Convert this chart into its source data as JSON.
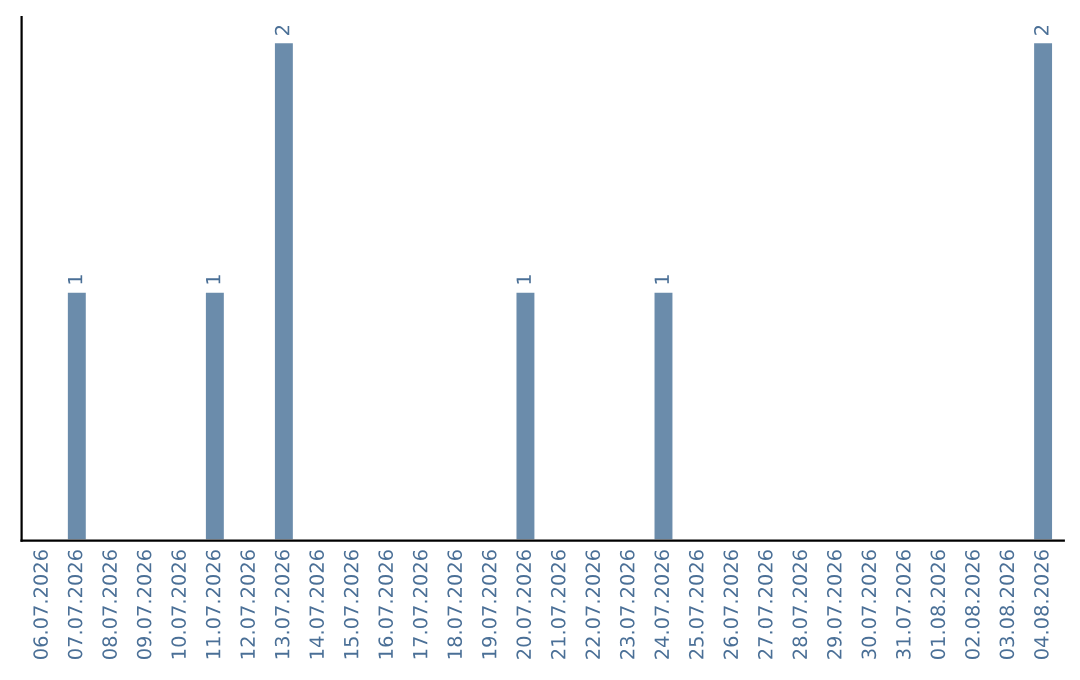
{
  "chart_data": {
    "type": "bar",
    "categories": [
      "06.07.2026",
      "07.07.2026",
      "08.07.2026",
      "09.07.2026",
      "10.07.2026",
      "11.07.2026",
      "12.07.2026",
      "13.07.2026",
      "14.07.2026",
      "15.07.2026",
      "16.07.2026",
      "17.07.2026",
      "18.07.2026",
      "19.07.2026",
      "20.07.2026",
      "21.07.2026",
      "22.07.2026",
      "23.07.2026",
      "24.07.2026",
      "25.07.2026",
      "26.07.2026",
      "27.07.2026",
      "28.07.2026",
      "29.07.2026",
      "30.07.2026",
      "31.07.2026",
      "01.08.2026",
      "02.08.2026",
      "03.08.2026",
      "04.08.2026"
    ],
    "values": [
      null,
      1,
      null,
      null,
      null,
      1,
      null,
      2,
      null,
      null,
      null,
      null,
      null,
      null,
      1,
      null,
      null,
      null,
      1,
      null,
      null,
      null,
      null,
      null,
      null,
      null,
      null,
      null,
      null,
      2
    ],
    "color": "#6b8cab",
    "value_labels": [
      null,
      "1",
      null,
      null,
      null,
      "1",
      null,
      "2",
      null,
      null,
      null,
      null,
      null,
      null,
      "1",
      null,
      null,
      null,
      "1",
      null,
      null,
      null,
      null,
      null,
      null,
      null,
      null,
      null,
      null,
      "2"
    ],
    "tick_labels": "x",
    "grid": false,
    "legend": false
  }
}
